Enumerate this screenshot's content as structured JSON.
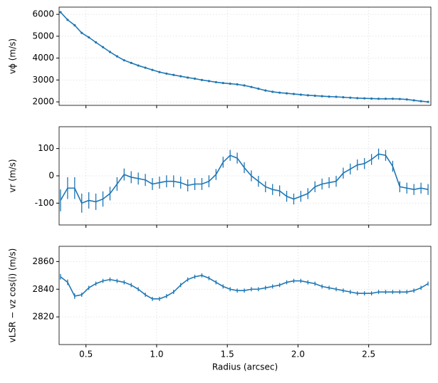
{
  "chart_data": [
    {
      "type": "errorbar-line",
      "ylabel": "vϕ (m/s)",
      "xlim": [
        0.31,
        2.94
      ],
      "xticks": [
        0.5,
        1,
        1.5,
        2,
        2.5
      ],
      "ylim": [
        1840,
        6330
      ],
      "yticks": [
        2000,
        3000,
        4000,
        5000,
        6000
      ],
      "grid": true,
      "markers": true,
      "x": [
        0.32,
        0.37,
        0.42,
        0.47,
        0.52,
        0.57,
        0.62,
        0.67,
        0.72,
        0.77,
        0.82,
        0.87,
        0.92,
        0.97,
        1.02,
        1.07,
        1.12,
        1.17,
        1.22,
        1.27,
        1.32,
        1.37,
        1.42,
        1.47,
        1.52,
        1.57,
        1.62,
        1.67,
        1.72,
        1.77,
        1.82,
        1.87,
        1.92,
        1.97,
        2.02,
        2.07,
        2.12,
        2.17,
        2.22,
        2.27,
        2.32,
        2.37,
        2.42,
        2.47,
        2.52,
        2.57,
        2.62,
        2.67,
        2.72,
        2.77,
        2.82,
        2.87,
        2.92
      ],
      "series": [
        {
          "color": "#1f77b4",
          "values": [
            6100,
            5750,
            5500,
            5150,
            4950,
            4720,
            4500,
            4280,
            4080,
            3900,
            3780,
            3660,
            3560,
            3460,
            3360,
            3290,
            3230,
            3170,
            3110,
            3060,
            3000,
            2950,
            2900,
            2860,
            2830,
            2800,
            2750,
            2680,
            2600,
            2520,
            2460,
            2420,
            2390,
            2360,
            2330,
            2300,
            2280,
            2260,
            2240,
            2230,
            2210,
            2190,
            2170,
            2160,
            2150,
            2140,
            2140,
            2140,
            2130,
            2110,
            2070,
            2030,
            2000
          ],
          "errors": [
            20,
            20,
            20,
            20,
            20,
            20,
            20,
            20,
            20,
            20,
            20,
            20,
            20,
            20,
            20,
            20,
            20,
            20,
            20,
            20,
            20,
            20,
            20,
            20,
            20,
            20,
            20,
            20,
            20,
            20,
            20,
            20,
            20,
            20,
            20,
            20,
            20,
            20,
            20,
            20,
            20,
            20,
            20,
            20,
            20,
            20,
            20,
            20,
            20,
            20,
            20,
            20,
            20
          ]
        }
      ]
    },
    {
      "type": "errorbar-line",
      "ylabel": "vr (m/s)",
      "xlim": [
        0.31,
        2.94
      ],
      "xticks": [
        0.5,
        1,
        1.5,
        2,
        2.5
      ],
      "ylim": [
        -180,
        180
      ],
      "yticks": [
        -100,
        0,
        100
      ],
      "grid": true,
      "markers": false,
      "x": [
        0.32,
        0.37,
        0.42,
        0.47,
        0.52,
        0.57,
        0.62,
        0.67,
        0.72,
        0.77,
        0.82,
        0.87,
        0.92,
        0.97,
        1.02,
        1.07,
        1.12,
        1.17,
        1.22,
        1.27,
        1.32,
        1.37,
        1.42,
        1.47,
        1.52,
        1.57,
        1.62,
        1.67,
        1.72,
        1.77,
        1.82,
        1.87,
        1.92,
        1.97,
        2.02,
        2.07,
        2.12,
        2.17,
        2.22,
        2.27,
        2.32,
        2.37,
        2.42,
        2.47,
        2.52,
        2.57,
        2.62,
        2.67,
        2.72,
        2.77,
        2.82,
        2.87,
        2.92
      ],
      "series": [
        {
          "color": "#1f77b4",
          "values": [
            -90,
            -45,
            -45,
            -100,
            -90,
            -95,
            -85,
            -65,
            -30,
            5,
            -5,
            -10,
            -15,
            -30,
            -25,
            -20,
            -20,
            -25,
            -35,
            -30,
            -30,
            -20,
            5,
            50,
            75,
            65,
            30,
            0,
            -20,
            -40,
            -50,
            -55,
            -75,
            -85,
            -75,
            -65,
            -40,
            -30,
            -25,
            -20,
            10,
            25,
            40,
            45,
            60,
            80,
            75,
            35,
            -40,
            -45,
            -50,
            -45,
            -50
          ],
          "errors": [
            40,
            40,
            40,
            35,
            30,
            30,
            28,
            25,
            25,
            22,
            22,
            22,
            22,
            22,
            22,
            22,
            22,
            22,
            22,
            22,
            22,
            22,
            20,
            20,
            20,
            20,
            20,
            20,
            20,
            20,
            20,
            20,
            20,
            20,
            20,
            20,
            20,
            20,
            20,
            20,
            20,
            20,
            20,
            20,
            20,
            20,
            20,
            20,
            20,
            20,
            20,
            20,
            20
          ]
        }
      ]
    },
    {
      "type": "errorbar-line",
      "ylabel": "vLSR − vz cos(i) (m/s)",
      "xlabel": "Radius (arcsec)",
      "xlim": [
        0.31,
        2.94
      ],
      "xticks": [
        0.5,
        {
          "value": 1,
          "label": "1.0"
        },
        1.5,
        {
          "value": 2,
          "label": "2.0"
        },
        2.5
      ],
      "ylim": [
        2800,
        2871
      ],
      "yticks": [
        2820,
        2840,
        2860
      ],
      "grid": true,
      "markers": false,
      "x": [
        0.32,
        0.37,
        0.42,
        0.47,
        0.52,
        0.57,
        0.62,
        0.67,
        0.72,
        0.77,
        0.82,
        0.87,
        0.92,
        0.97,
        1.02,
        1.07,
        1.12,
        1.17,
        1.22,
        1.27,
        1.32,
        1.37,
        1.42,
        1.47,
        1.52,
        1.57,
        1.62,
        1.67,
        1.72,
        1.77,
        1.82,
        1.87,
        1.92,
        1.97,
        2.02,
        2.07,
        2.12,
        2.17,
        2.22,
        2.27,
        2.32,
        2.37,
        2.42,
        2.47,
        2.52,
        2.57,
        2.62,
        2.67,
        2.72,
        2.77,
        2.82,
        2.87,
        2.92
      ],
      "series": [
        {
          "color": "#1f77b4",
          "values": [
            2849,
            2845,
            2835,
            2836,
            2841,
            2844,
            2846,
            2847,
            2846,
            2845,
            2843,
            2840,
            2836,
            2833,
            2833,
            2835,
            2838,
            2843,
            2847,
            2849,
            2850,
            2848,
            2845,
            2842,
            2840,
            2839,
            2839,
            2840,
            2840,
            2841,
            2842,
            2843,
            2845,
            2846,
            2846,
            2845,
            2844,
            2842,
            2841,
            2840,
            2839,
            2838,
            2837,
            2837,
            2837,
            2838,
            2838,
            2838,
            2838,
            2838,
            2839,
            2841,
            2844
          ],
          "errors": [
            2,
            2,
            2,
            1.5,
            1.5,
            1.5,
            1.5,
            1.5,
            1.5,
            1.5,
            1.5,
            1.5,
            1.5,
            1.5,
            1.5,
            1.5,
            1.5,
            1.5,
            1.5,
            1.5,
            1.5,
            1.5,
            1.5,
            1.5,
            1.5,
            1.5,
            1.5,
            1.5,
            1.5,
            1.5,
            1.5,
            1.5,
            1.5,
            1.5,
            1.5,
            1.5,
            1.5,
            1.5,
            1.5,
            1.5,
            1.5,
            1.5,
            1.5,
            1.5,
            1.5,
            1.5,
            1.5,
            1.5,
            1.5,
            1.5,
            1.5,
            1.5,
            1.5
          ]
        }
      ]
    }
  ]
}
